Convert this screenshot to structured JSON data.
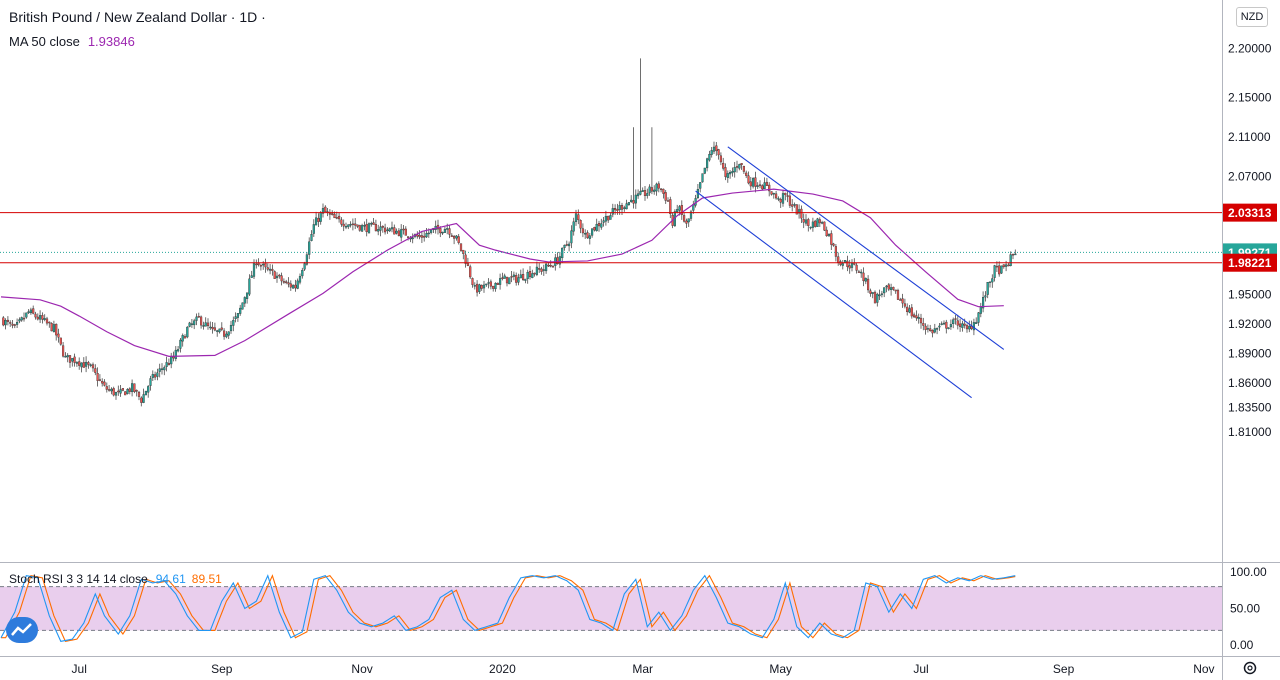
{
  "header": {
    "symbol_title": "British Pound / New Zealand Dollar · 1D ·",
    "ma_label": "MA 50 close",
    "ma_value": "1.93846",
    "currency": "NZD"
  },
  "oscillator": {
    "label": "Stoch RSI 3 3 14 14 close",
    "k_value": "94.61",
    "d_value": "89.51"
  },
  "colors": {
    "up": "#26a69a",
    "down": "#ef5350",
    "ma": "#9c27b0",
    "channel": "#1e3fd6",
    "level": "#d50000",
    "price_tag": "#26a69a",
    "stoch_k": "#2196f3",
    "stoch_d": "#ff6d00",
    "stoch_band": "#e1bee7"
  },
  "chart_data": [
    {
      "type": "candlestick",
      "title": "British Pound / New Zealand Dollar · 1D",
      "ylim": [
        1.8,
        2.2
      ],
      "price_axis_ticks": [
        "2.20000",
        "2.15000",
        "2.11000",
        "2.07000",
        "1.95000",
        "1.92000",
        "1.89000",
        "1.86000",
        "1.83500",
        "1.81000"
      ],
      "price_axis_values": [
        2.2,
        2.15,
        2.11,
        2.07,
        1.95,
        1.92,
        1.89,
        1.86,
        1.835,
        1.81
      ],
      "time_axis_labels": [
        "Jul",
        "Sep",
        "Nov",
        "2020",
        "Mar",
        "May",
        "Jul",
        "Sep",
        "Nov"
      ],
      "time_axis_days": [
        34,
        96,
        157,
        218,
        279,
        339,
        400,
        462,
        523
      ],
      "horizontal_levels": [
        {
          "label": "2.03313",
          "value": 2.03313
        },
        {
          "label": "1.98221",
          "value": 1.98221
        }
      ],
      "last_price": {
        "label": "1.99271",
        "value": 1.99271
      },
      "channel_lines": [
        {
          "from": {
            "day": 316,
            "price": 2.1
          },
          "to": {
            "day": 436,
            "price": 1.894
          }
        },
        {
          "from": {
            "day": 302,
            "price": 2.055
          },
          "to": {
            "day": 422,
            "price": 1.845
          }
        }
      ],
      "ma": {
        "name": "MA 50 close",
        "last": 1.93846,
        "path": [
          [
            0,
            1.9475
          ],
          [
            17,
            1.9445
          ],
          [
            26,
            1.938
          ],
          [
            34,
            1.928
          ],
          [
            46,
            1.912
          ],
          [
            58,
            1.898
          ],
          [
            73,
            1.887
          ],
          [
            93,
            1.888
          ],
          [
            106,
            1.903
          ],
          [
            125,
            1.93
          ],
          [
            140,
            1.951
          ],
          [
            153,
            1.973
          ],
          [
            168,
            1.995
          ],
          [
            183,
            2.014
          ],
          [
            198,
            2.022
          ],
          [
            208,
            2.0
          ],
          [
            215,
            1.995
          ],
          [
            230,
            1.986
          ],
          [
            238,
            1.983
          ],
          [
            255,
            1.984
          ],
          [
            270,
            1.991
          ],
          [
            283,
            2.005
          ],
          [
            294,
            2.03
          ],
          [
            305,
            2.048
          ],
          [
            318,
            2.053
          ],
          [
            336,
            2.057
          ],
          [
            353,
            2.052
          ],
          [
            366,
            2.045
          ],
          [
            378,
            2.028
          ],
          [
            389,
            2.0
          ],
          [
            402,
            1.973
          ],
          [
            416,
            1.945
          ],
          [
            425,
            1.9375
          ],
          [
            436,
            1.9385
          ]
        ]
      },
      "price_path": [
        [
          0,
          1.925
        ],
        [
          6,
          1.915
        ],
        [
          12,
          1.932
        ],
        [
          17,
          1.925
        ],
        [
          23,
          1.915
        ],
        [
          28,
          1.885
        ],
        [
          33,
          1.883
        ],
        [
          39,
          1.875
        ],
        [
          45,
          1.855
        ],
        [
          51,
          1.848
        ],
        [
          57,
          1.855
        ],
        [
          61,
          1.843
        ],
        [
          65,
          1.862
        ],
        [
          70,
          1.875
        ],
        [
          75,
          1.885
        ],
        [
          81,
          1.915
        ],
        [
          86,
          1.925
        ],
        [
          92,
          1.912
        ],
        [
          97,
          1.91
        ],
        [
          103,
          1.928
        ],
        [
          107,
          1.955
        ],
        [
          111,
          1.985
        ],
        [
          115,
          1.975
        ],
        [
          119,
          1.97
        ],
        [
          124,
          1.96
        ],
        [
          128,
          1.958
        ],
        [
          132,
          1.985
        ],
        [
          136,
          2.02
        ],
        [
          140,
          2.035
        ],
        [
          146,
          2.025
        ],
        [
          152,
          2.022
        ],
        [
          158,
          2.018
        ],
        [
          164,
          2.018
        ],
        [
          170,
          2.015
        ],
        [
          176,
          2.012
        ],
        [
          182,
          2.008
        ],
        [
          188,
          2.015
        ],
        [
          194,
          2.018
        ],
        [
          198,
          2.006
        ],
        [
          202,
          1.985
        ],
        [
          206,
          1.955
        ],
        [
          212,
          1.958
        ],
        [
          218,
          1.965
        ],
        [
          224,
          1.966
        ],
        [
          230,
          1.972
        ],
        [
          236,
          1.976
        ],
        [
          242,
          1.985
        ],
        [
          247,
          2.005
        ],
        [
          250,
          2.03
        ],
        [
          254,
          2.01
        ],
        [
          258,
          2.018
        ],
        [
          264,
          2.03
        ],
        [
          270,
          2.04
        ],
        [
          276,
          2.048
        ],
        [
          282,
          2.055
        ],
        [
          286,
          2.06
        ],
        [
          290,
          2.045
        ],
        [
          292,
          2.02
        ],
        [
          294,
          2.04
        ],
        [
          298,
          2.02
        ],
        [
          302,
          2.045
        ],
        [
          306,
          2.078
        ],
        [
          309,
          2.098
        ],
        [
          312,
          2.095
        ],
        [
          315,
          2.067
        ],
        [
          318,
          2.075
        ],
        [
          321,
          2.085
        ],
        [
          325,
          2.065
        ],
        [
          330,
          2.063
        ],
        [
          335,
          2.055
        ],
        [
          338,
          2.045
        ],
        [
          341,
          2.05
        ],
        [
          346,
          2.035
        ],
        [
          351,
          2.02
        ],
        [
          356,
          2.025
        ],
        [
          360,
          2.01
        ],
        [
          364,
          1.985
        ],
        [
          369,
          1.98
        ],
        [
          373,
          1.975
        ],
        [
          376,
          1.962
        ],
        [
          380,
          1.945
        ],
        [
          384,
          1.955
        ],
        [
          388,
          1.952
        ],
        [
          392,
          1.942
        ],
        [
          396,
          1.93
        ],
        [
          400,
          1.922
        ],
        [
          404,
          1.912
        ],
        [
          410,
          1.918
        ],
        [
          416,
          1.922
        ],
        [
          420,
          1.913
        ],
        [
          424,
          1.925
        ],
        [
          426,
          1.937
        ],
        [
          429,
          1.958
        ],
        [
          432,
          1.975
        ],
        [
          436,
          1.975
        ],
        [
          440,
          1.99
        ],
        [
          441,
          1.9927
        ]
      ]
    },
    {
      "type": "line",
      "title": "Stoch RSI 3 3 14 14 close",
      "ylim": [
        0,
        100
      ],
      "y_axis_ticks": [
        "100.00",
        "50.00",
        "0.00"
      ],
      "bands": [
        20,
        80
      ],
      "series": [
        {
          "name": "K",
          "last": 94.61
        },
        {
          "name": "D",
          "last": 89.51
        }
      ],
      "k_path": [
        [
          0,
          10
        ],
        [
          6,
          45
        ],
        [
          11,
          95
        ],
        [
          16,
          92
        ],
        [
          21,
          40
        ],
        [
          26,
          5
        ],
        [
          31,
          8
        ],
        [
          36,
          30
        ],
        [
          41,
          70
        ],
        [
          45,
          40
        ],
        [
          51,
          15
        ],
        [
          56,
          40
        ],
        [
          61,
          90
        ],
        [
          66,
          85
        ],
        [
          71,
          88
        ],
        [
          76,
          70
        ],
        [
          81,
          40
        ],
        [
          86,
          20
        ],
        [
          91,
          20
        ],
        [
          96,
          60
        ],
        [
          101,
          85
        ],
        [
          106,
          50
        ],
        [
          111,
          60
        ],
        [
          116,
          95
        ],
        [
          121,
          45
        ],
        [
          126,
          10
        ],
        [
          131,
          18
        ],
        [
          136,
          90
        ],
        [
          141,
          95
        ],
        [
          146,
          75
        ],
        [
          151,
          45
        ],
        [
          156,
          30
        ],
        [
          161,
          25
        ],
        [
          166,
          30
        ],
        [
          171,
          40
        ],
        [
          176,
          20
        ],
        [
          181,
          25
        ],
        [
          186,
          35
        ],
        [
          191,
          65
        ],
        [
          196,
          75
        ],
        [
          201,
          35
        ],
        [
          206,
          20
        ],
        [
          211,
          25
        ],
        [
          216,
          30
        ],
        [
          221,
          65
        ],
        [
          226,
          92
        ],
        [
          231,
          95
        ],
        [
          236,
          92
        ],
        [
          241,
          95
        ],
        [
          246,
          88
        ],
        [
          251,
          75
        ],
        [
          256,
          35
        ],
        [
          261,
          30
        ],
        [
          266,
          20
        ],
        [
          271,
          70
        ],
        [
          276,
          90
        ],
        [
          281,
          25
        ],
        [
          286,
          45
        ],
        [
          291,
          20
        ],
        [
          296,
          40
        ],
        [
          301,
          75
        ],
        [
          306,
          95
        ],
        [
          311,
          65
        ],
        [
          316,
          30
        ],
        [
          321,
          25
        ],
        [
          326,
          15
        ],
        [
          331,
          10
        ],
        [
          336,
          35
        ],
        [
          341,
          85
        ],
        [
          346,
          25
        ],
        [
          351,
          10
        ],
        [
          356,
          30
        ],
        [
          361,
          15
        ],
        [
          366,
          10
        ],
        [
          371,
          20
        ],
        [
          376,
          85
        ],
        [
          381,
          80
        ],
        [
          386,
          45
        ],
        [
          391,
          70
        ],
        [
          396,
          50
        ],
        [
          401,
          90
        ],
        [
          406,
          95
        ],
        [
          411,
          85
        ],
        [
          416,
          92
        ],
        [
          421,
          88
        ],
        [
          426,
          95
        ],
        [
          431,
          90
        ],
        [
          436,
          92
        ],
        [
          441,
          95
        ]
      ]
    }
  ]
}
